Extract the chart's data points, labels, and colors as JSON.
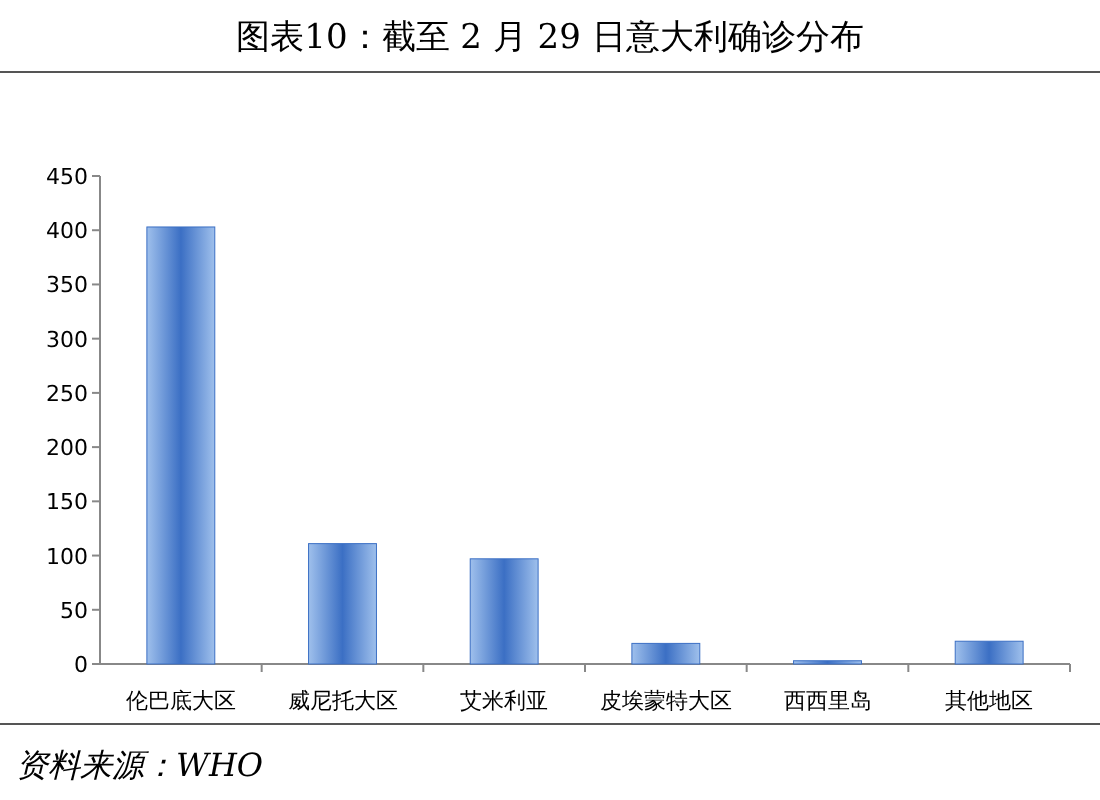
{
  "chart_data": {
    "type": "bar",
    "title": "图表10：截至 2 月 29 日意大利确诊分布",
    "categories": [
      "伦巴底大区",
      "威尼托大区",
      "艾米利亚",
      "皮埃蒙特大区",
      "西西里岛",
      "其他地区"
    ],
    "values": [
      403,
      111,
      97,
      19,
      3,
      21
    ],
    "color": "#3b6fc4",
    "ylim": [
      0,
      450
    ],
    "yticks": [
      0,
      50,
      100,
      150,
      200,
      250,
      300,
      350,
      400,
      450
    ],
    "grid": false,
    "annotations": [
      "资料来源：WHO"
    ]
  }
}
